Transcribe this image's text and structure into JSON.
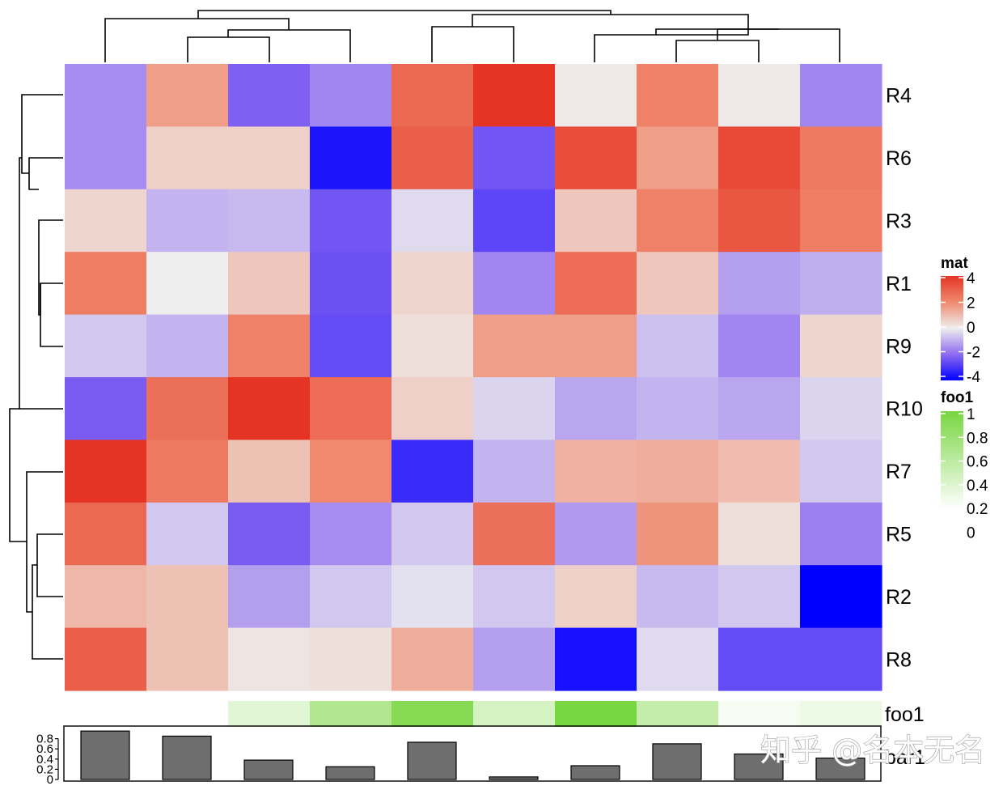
{
  "chart_data": {
    "type": "heatmap",
    "row_labels": [
      "R4",
      "R6",
      "R3",
      "R1",
      "R9",
      "R10",
      "R7",
      "R5",
      "R2",
      "R8"
    ],
    "matrix": [
      [
        -1.5,
        1.6,
        -2.2,
        -1.6,
        2.8,
        4.1,
        0.1,
        2.2,
        0.1,
        -1.6
      ],
      [
        -1.5,
        0.6,
        0.6,
        -3.6,
        3.0,
        -2.4,
        3.4,
        1.6,
        3.5,
        2.4
      ],
      [
        0.5,
        -0.9,
        -0.8,
        -2.4,
        -0.3,
        -2.7,
        0.8,
        2.2,
        3.2,
        2.3
      ],
      [
        2.3,
        0.0,
        0.8,
        -2.5,
        0.5,
        -1.6,
        2.7,
        0.8,
        -1.2,
        -1.0
      ],
      [
        -0.6,
        -0.9,
        2.2,
        -2.6,
        0.3,
        1.6,
        1.6,
        -0.7,
        -1.6,
        0.5
      ],
      [
        -2.3,
        2.6,
        4.0,
        2.7,
        0.6,
        -0.4,
        -1.1,
        -0.9,
        -1.1,
        -0.4
      ],
      [
        4.2,
        2.4,
        0.9,
        2.0,
        -3.2,
        -0.9,
        1.2,
        1.3,
        1.0,
        -0.6
      ],
      [
        2.8,
        -0.6,
        -2.3,
        -1.5,
        -0.6,
        2.6,
        -1.3,
        1.8,
        0.3,
        -1.7
      ],
      [
        1.1,
        0.9,
        -1.2,
        -0.6,
        -0.2,
        -0.6,
        0.6,
        -0.8,
        -0.6,
        -4.0
      ],
      [
        3.0,
        0.9,
        0.2,
        0.3,
        1.3,
        -1.2,
        -3.7,
        -0.3,
        -2.6,
        -2.6
      ]
    ],
    "color_scale": {
      "name": "mat",
      "breaks": [
        -4,
        -2,
        0,
        2,
        4
      ],
      "colors": [
        "#0000ff",
        "#8e6bf0",
        "#eeeeee",
        "#ef8a6f",
        "#e53424"
      ]
    },
    "column_annotation": {
      "name": "foo1",
      "values": [
        0.0,
        0.0,
        0.22,
        0.58,
        0.9,
        0.32,
        1.0,
        0.44,
        0.07,
        0.14
      ],
      "legend_ticks": [
        "1",
        "0.8",
        "0.6",
        "0.4",
        "0.2",
        "0"
      ],
      "color_low": "#ffffff",
      "color_high": "#78d641"
    },
    "bar_annotation": {
      "name": "bar1",
      "values": [
        0.95,
        0.85,
        0.38,
        0.25,
        0.73,
        0.05,
        0.27,
        0.7,
        0.5,
        0.42
      ],
      "ylim": [
        0,
        1
      ],
      "ticks": [
        "0",
        "0.2",
        "0.4",
        "0.6",
        "0.8"
      ],
      "bar_color": "#6e6e6e"
    },
    "legend_ticks_mat": [
      "4",
      "2",
      "0",
      "-2",
      "-4"
    ],
    "legend_placement": "right",
    "n_columns": 10
  },
  "watermark": "知乎 @名本无名"
}
